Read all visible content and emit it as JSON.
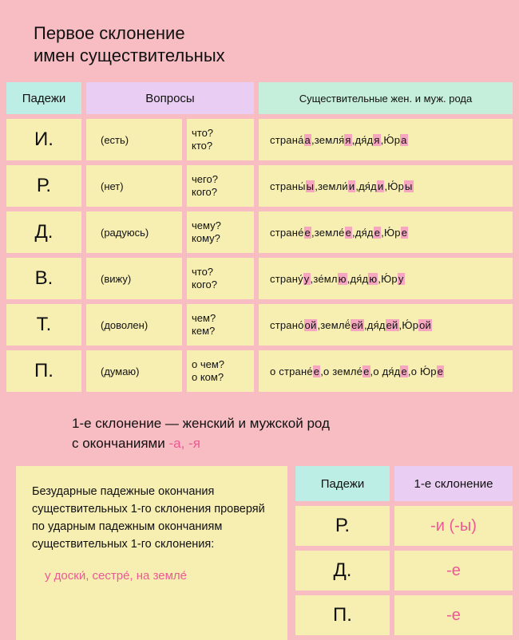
{
  "title_l1": "Первое склонение",
  "title_l2": "имен существительных",
  "headers": {
    "cases": "Падежи",
    "questions": "Вопросы",
    "nouns": "Существительные жен. и муж. рода"
  },
  "rows": [
    {
      "case": "И.",
      "verb": "(есть)",
      "q1": "что?",
      "q2": "кто?"
    },
    {
      "case": "Р.",
      "verb": "(нет)",
      "q1": "чего?",
      "q2": "кого?"
    },
    {
      "case": "Д.",
      "verb": "(радуюсь)",
      "q1": "чему?",
      "q2": "кому?"
    },
    {
      "case": "В.",
      "verb": "(вижу)",
      "q1": "что?",
      "q2": "кого?"
    },
    {
      "case": "Т.",
      "verb": "(доволен)",
      "q1": "чем?",
      "q2": "кем?"
    },
    {
      "case": "П.",
      "verb": "(думаю)",
      "q1": "о чем?",
      "q2": "о ком?"
    }
  ],
  "nouns_rows": [
    [
      [
        "",
        "стран",
        "а́",
        "а",
        ", "
      ],
      [
        "",
        "земл",
        "я́",
        "я",
        ", "
      ],
      [
        "",
        "д",
        "я́",
        "д",
        "я",
        ", "
      ],
      [
        "",
        "",
        "Ю́",
        "р",
        "а",
        ""
      ]
    ],
    [
      [
        "",
        "стран",
        "ы́",
        "ы",
        ", "
      ],
      [
        "",
        "земл",
        "и́",
        "и",
        ", "
      ],
      [
        "",
        "д",
        "я́",
        "д",
        "и",
        ", "
      ],
      [
        "",
        "",
        "Ю́",
        "р",
        "ы",
        ""
      ]
    ],
    [
      [
        "",
        "стран",
        "е́",
        "е",
        ", "
      ],
      [
        "",
        "земл",
        "е́",
        "е",
        ", "
      ],
      [
        "",
        "д",
        "я́",
        "д",
        "е",
        ", "
      ],
      [
        "",
        "",
        "Ю́",
        "р",
        "е",
        ""
      ]
    ],
    [
      [
        "",
        "стран",
        "у́",
        "у",
        ", "
      ],
      [
        "",
        "з",
        "е́",
        "мл",
        "ю",
        ", "
      ],
      [
        "",
        "д",
        "я́",
        "д",
        "ю",
        ", "
      ],
      [
        "",
        "",
        "Ю́",
        "р",
        "у",
        ""
      ]
    ],
    [
      [
        "",
        "стран",
        "о́",
        "ой",
        ", "
      ],
      [
        "",
        "земл",
        "ё́",
        "ей",
        ", "
      ],
      [
        "",
        "д",
        "я́",
        "д",
        "ей",
        ", "
      ],
      [
        "",
        "",
        "Ю́",
        "р",
        "ой",
        ""
      ]
    ],
    [
      [
        "о ",
        "стран",
        "е́",
        "е",
        ", "
      ],
      [
        "о ",
        "земл",
        "е́",
        "е",
        ", "
      ],
      [
        "о ",
        "д",
        "я́",
        "д",
        "е",
        ", "
      ],
      [
        "о ",
        "",
        "Ю́",
        "р",
        "е",
        ""
      ]
    ]
  ],
  "mid_l1": "1-е склонение — женский и мужской род",
  "mid_l2a": "с окончаниями ",
  "mid_l2b": "-а,  -я",
  "note_text": "Безударные падежные окончания существительных 1-го склонения проверяй по ударным падежным окончаниям существительных 1-го  склонения:",
  "note_ex": "у доски́, сестре́, на земле́",
  "mini": {
    "h1": "Падежи",
    "h2": "1-е склонение",
    "rows": [
      {
        "case": "Р.",
        "end": "-и (-ы)"
      },
      {
        "case": "Д.",
        "end": "-е"
      },
      {
        "case": "П.",
        "end": "-е"
      }
    ]
  }
}
